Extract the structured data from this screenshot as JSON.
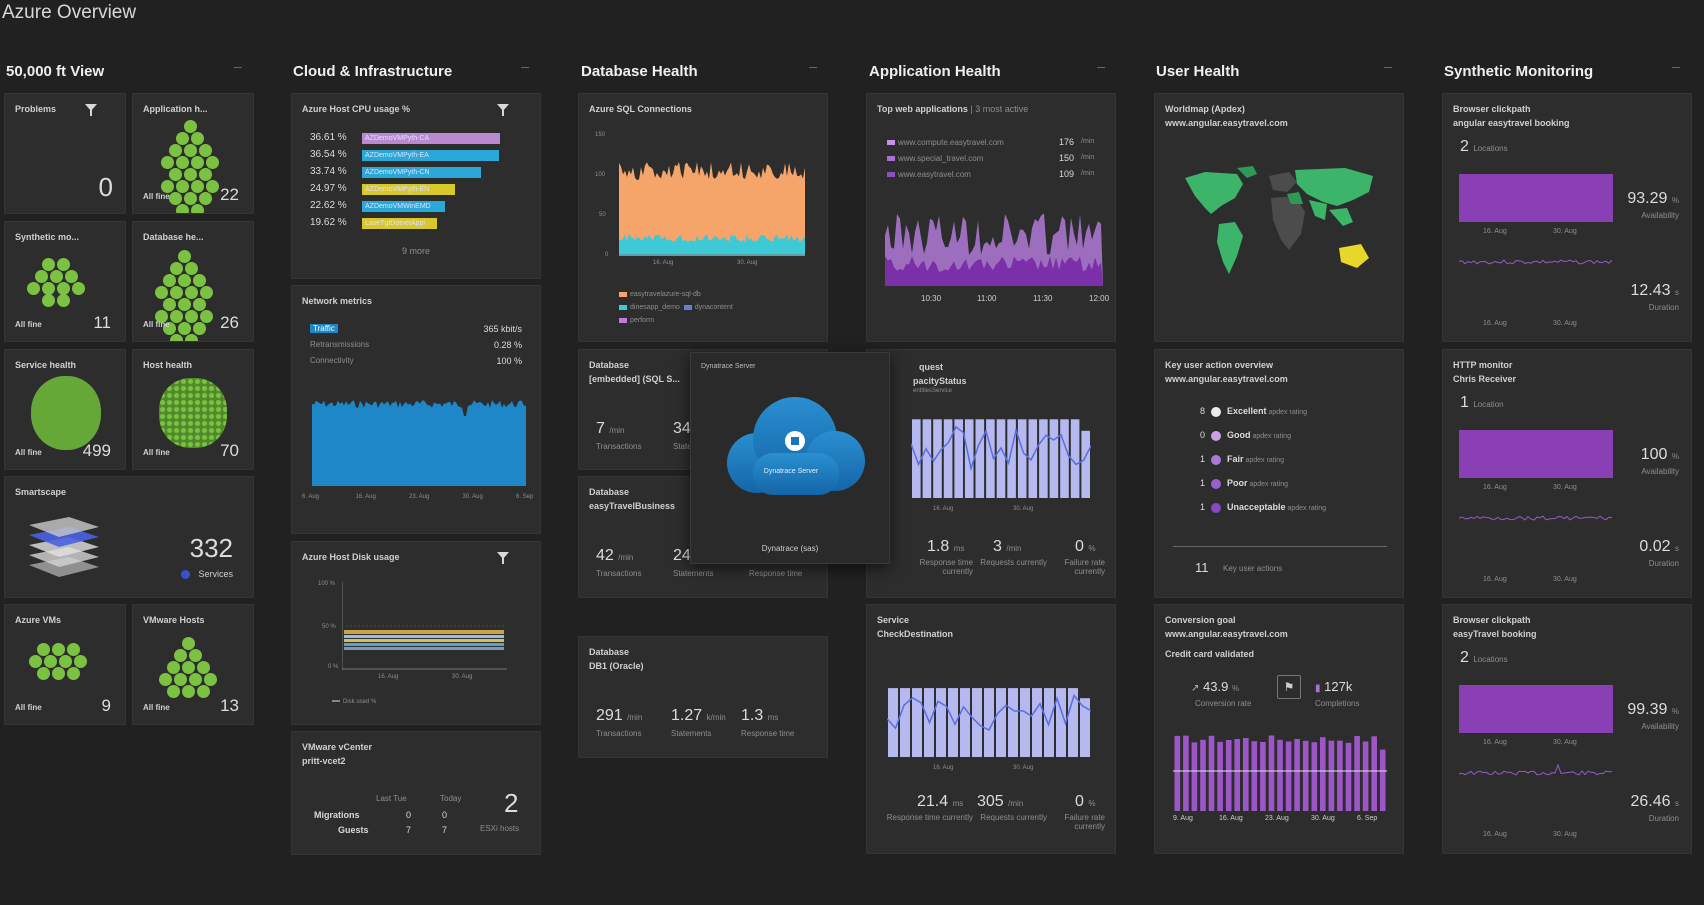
{
  "title": "Azure Overview",
  "columns": [
    "50,000 ft View",
    "Cloud & Infrastructure",
    "Database Health",
    "Application Health",
    "User Health",
    "Synthetic Monitoring"
  ],
  "colors": {
    "bg": "#212121",
    "tile": "#2d2d2d",
    "green": "#7cc242",
    "purple": "#8e44ad",
    "lilac": "#b6b8f0",
    "blue": "#1d87c8",
    "orange": "#f5a46a",
    "cyan": "#3ec9d6",
    "yellow": "#e8d62a"
  },
  "view50k": {
    "problems": {
      "label": "Problems",
      "value": "0"
    },
    "application_health": {
      "label": "Application h...",
      "filter": "All fine",
      "count": "22"
    },
    "synthetic": {
      "label": "Synthetic mo...",
      "filter": "All fine",
      "count": "11"
    },
    "database": {
      "label": "Database he...",
      "filter": "All fine",
      "count": "26"
    },
    "service_health": {
      "label": "Service health",
      "filter": "All fine",
      "count": "499"
    },
    "host_health": {
      "label": "Host health",
      "filter": "All fine",
      "count": "70"
    },
    "smartscape": {
      "label": "Smartscape",
      "value": "332",
      "unit": "Services"
    },
    "azure_vms": {
      "label": "Azure VMs",
      "filter": "All fine",
      "count": "9"
    },
    "vmware_hosts": {
      "label": "VMware Hosts",
      "filter": "All fine",
      "count": "13"
    }
  },
  "cloud": {
    "cpu": {
      "title": "Azure Host CPU usage %",
      "more": "9 more",
      "rows": [
        {
          "value": "36.61 %",
          "name": "AZDemoVMPyth-CA",
          "pct": 0.92,
          "color": "#b98ad0"
        },
        {
          "value": "36.54 %",
          "name": "AZDemoVMPyth-EA",
          "pct": 0.91,
          "color": "#2aa9d9"
        },
        {
          "value": "33.74 %",
          "name": "AZDemoVMPyth-CN",
          "pct": 0.79,
          "color": "#2aa9d9"
        },
        {
          "value": "24.97 %",
          "name": "AZDemoVMPyth-EN",
          "pct": 0.62,
          "color": "#d8c82b"
        },
        {
          "value": "22.62 %",
          "name": "AZDemoVMWinEMD",
          "pct": 0.55,
          "color": "#2aa9d9"
        },
        {
          "value": "19.62 %",
          "name": "LaseTgtDotnetAppl",
          "pct": 0.5,
          "color": "#d8c82b"
        }
      ]
    },
    "network": {
      "title": "Network metrics",
      "rows": [
        {
          "name": "Traffic",
          "value": "365 kbit/s"
        },
        {
          "name": "Retransmissions",
          "value": "0.28 %"
        },
        {
          "name": "Connectivity",
          "value": "100 %"
        }
      ],
      "xticks": [
        "6. Aug",
        "16. Aug",
        "23. Aug",
        "30. Aug",
        "6. Sep"
      ]
    },
    "disk": {
      "title": "Azure Host Disk usage",
      "yticks": [
        "100 %",
        "50 %",
        "0 %"
      ],
      "xticks": [
        "16. Aug",
        "30. Aug"
      ],
      "legend": "Disk used %"
    },
    "vcenter": {
      "title": "VMware vCenter",
      "host": "pritt-vcet2",
      "col1": "Last Tue",
      "col2": "Today",
      "migrations": {
        "label": "Migrations",
        "last": "0",
        "today": "0"
      },
      "guests": {
        "label": "Guests",
        "last": "7",
        "today": "7"
      },
      "hosts": {
        "value": "2",
        "label": "ESXi hosts"
      }
    }
  },
  "database": {
    "sql": {
      "title": "Azure SQL Connections",
      "yticks": [
        "150",
        "100",
        "50",
        "0"
      ],
      "xticks": [
        "16. Aug",
        "30. Aug"
      ],
      "legend": [
        "easytravelazure-sql-db",
        "dinesapp_demo",
        "dynacontent",
        "perform"
      ]
    },
    "db1": {
      "title": "Database",
      "name": "[embedded] (SQL S...",
      "transactions": "7",
      "statements": "34",
      "t_label": "Transactions",
      "s_label": "Statements",
      "t_unit": "/min"
    },
    "db2": {
      "title": "Database",
      "name": "easyTravelBusiness",
      "transactions": "42",
      "statements": "24",
      "t_label": "Transactions",
      "s_label": "Statements",
      "r_label": "Response time",
      "t_unit": "/min"
    },
    "db3": {
      "title": "Database",
      "name": "DB1 (Oracle)",
      "transactions": "291",
      "statements": "1.27",
      "response": "1.3",
      "t_label": "Transactions",
      "s_label": "Statements",
      "r_label": "Response time",
      "t_unit": "/min",
      "s_unit": "k/min",
      "r_unit": "ms"
    }
  },
  "server_overlay": {
    "header": "Dynatrace Server",
    "icon_label": "Dynatrace Server",
    "footer": "Dynatrace (sas)"
  },
  "apps": {
    "web": {
      "title": "Top web applications",
      "sub": "3 most active",
      "apps": [
        {
          "name": "www.compute.easytravel.com",
          "value": "176",
          "unit": "/min"
        },
        {
          "name": "www.special_travel.com",
          "value": "150",
          "unit": "/min"
        },
        {
          "name": "www.easytravel.com",
          "value": "109",
          "unit": "/min"
        }
      ],
      "xticks": [
        "10:30",
        "11:00",
        "11:30",
        "12:00"
      ]
    },
    "service1": {
      "title": "quest",
      "name": "pacityStatus",
      "sub": "entitiesService",
      "xticks": [
        "16. Aug",
        "30. Aug"
      ],
      "response": "1.8",
      "requests": "3",
      "failure": "0",
      "r_unit": "ms",
      "q_unit": "/min",
      "f_unit": "%",
      "r_label": "Response time currently",
      "q_label": "Requests currently",
      "f_label": "Failure rate currently"
    },
    "service2": {
      "title": "Service",
      "name": "CheckDestination",
      "xticks": [
        "16. Aug",
        "30. Aug"
      ],
      "response": "21.4",
      "requests": "305",
      "failure": "0",
      "r_unit": "ms",
      "q_unit": "/min",
      "f_unit": "%",
      "r_label": "Response time currently",
      "q_label": "Requests currently",
      "f_label": "Failure rate currently"
    }
  },
  "users": {
    "worldmap": {
      "title": "Worldmap (Apdex)",
      "site": "www.angular.easytravel.com"
    },
    "keyactions": {
      "title": "Key user action overview",
      "site": "www.angular.easytravel.com",
      "ratings": [
        {
          "n": "8",
          "name": "Excellent",
          "note": "apdex rating",
          "color": "#ececec"
        },
        {
          "n": "0",
          "name": "Good",
          "note": "apdex rating",
          "color": "#c9a0e6"
        },
        {
          "n": "1",
          "name": "Fair",
          "note": "apdex rating",
          "color": "#a97bd6"
        },
        {
          "n": "1",
          "name": "Poor",
          "note": "apdex rating",
          "color": "#9a5fd0"
        },
        {
          "n": "1",
          "name": "Unacceptable",
          "note": "apdex rating",
          "color": "#8a46c6"
        }
      ],
      "total": "11",
      "total_label": "Key user actions"
    },
    "conversion": {
      "title": "Conversion goal",
      "site": "www.angular.easytravel.com",
      "goal": "Credit card validated",
      "rate": "43.9",
      "rate_unit": "%",
      "rate_label": "Conversion rate",
      "completions": "127k",
      "completions_label": "Completions",
      "xticks": [
        "9. Aug",
        "16. Aug",
        "23. Aug",
        "30. Aug",
        "6. Sep"
      ]
    }
  },
  "synthetic": {
    "t1": {
      "title": "Browser clickpath",
      "name": "angular easytravel booking",
      "locations": "2",
      "loc_label": "Locations",
      "availability": "93.29",
      "a_unit": "%",
      "a_label": "Availability",
      "duration": "12.43",
      "d_unit": "s",
      "d_label": "Duration",
      "xticks": [
        "16. Aug",
        "30. Aug"
      ]
    },
    "t2": {
      "title": "HTTP monitor",
      "name": "Chris Receiver",
      "locations": "1",
      "loc_label": "Location",
      "availability": "100",
      "a_unit": "%",
      "a_label": "Availability",
      "duration": "0.02",
      "d_unit": "s",
      "d_label": "Duration",
      "xticks": [
        "16. Aug",
        "30. Aug"
      ]
    },
    "t3": {
      "title": "Browser clickpath",
      "name": "easyTravel booking",
      "locations": "2",
      "loc_label": "Locations",
      "availability": "99.39",
      "a_unit": "%",
      "a_label": "Availability",
      "duration": "26.46",
      "d_unit": "s",
      "d_label": "Duration",
      "xticks": [
        "16. Aug",
        "30. Aug"
      ]
    }
  }
}
